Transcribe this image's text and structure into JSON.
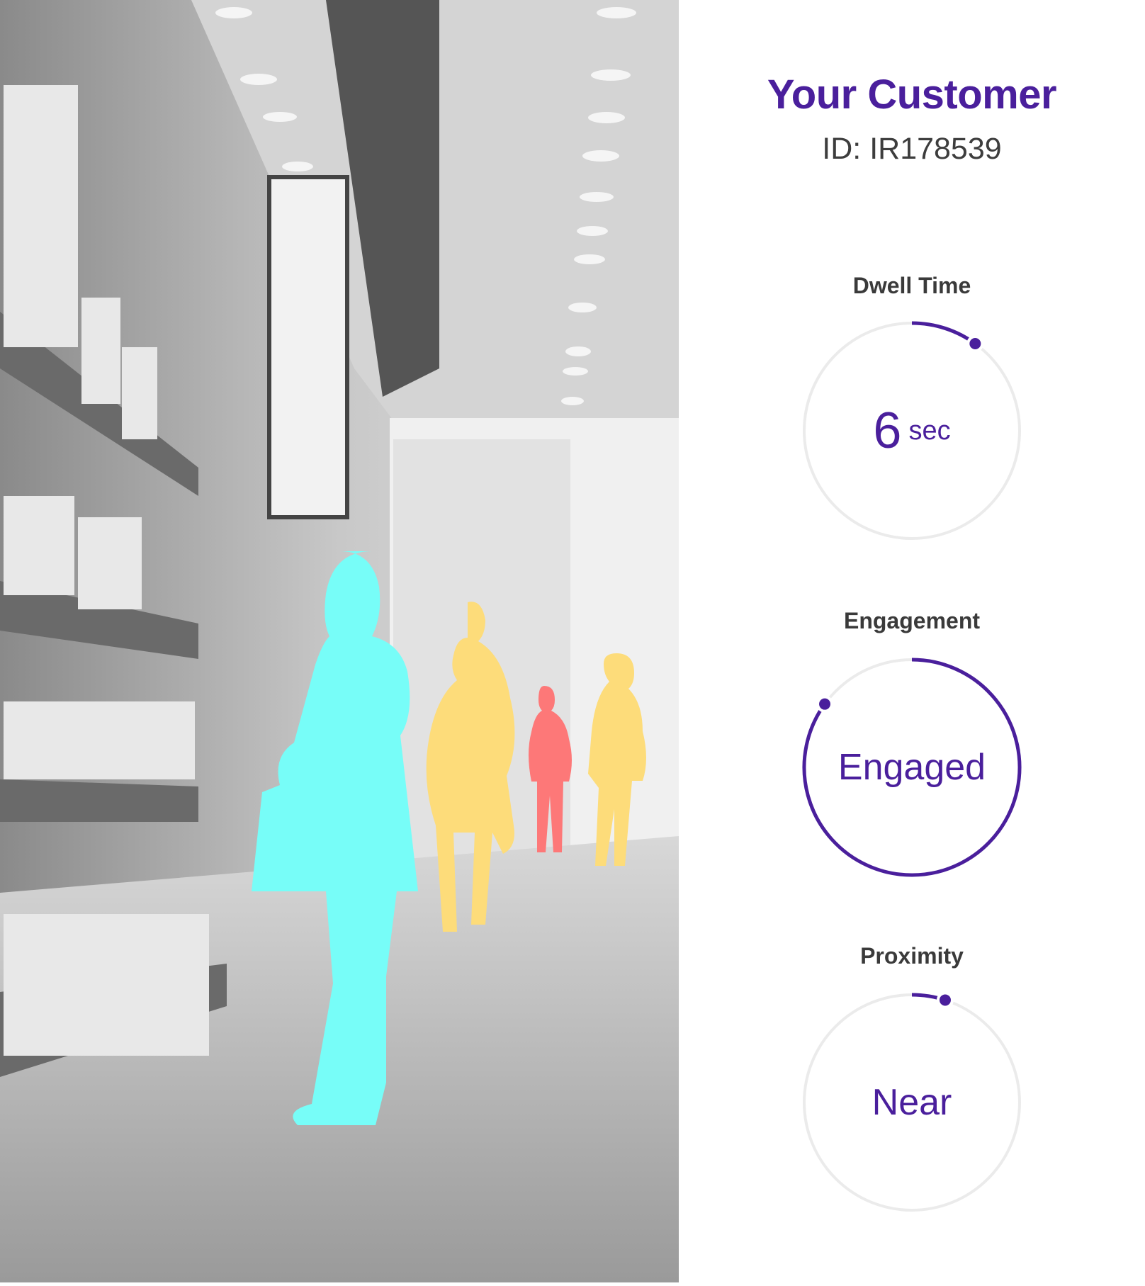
{
  "header": {
    "title": "Your Customer",
    "customer_id": "ID: IR178539"
  },
  "metrics": [
    {
      "label": "Dwell Time",
      "value": "6",
      "unit": "sec",
      "progress": 0.1
    },
    {
      "label": "Engagement",
      "value": "Engaged",
      "progress": 0.85
    },
    {
      "label": "Proximity",
      "value": "Near",
      "progress": 0.05
    }
  ],
  "colors": {
    "accent": "#4a1f9c",
    "track": "#ebebeb",
    "primary_person": "#77fdf8",
    "secondary_person": "#fddc7a",
    "tertiary_person": "#fd7878"
  }
}
